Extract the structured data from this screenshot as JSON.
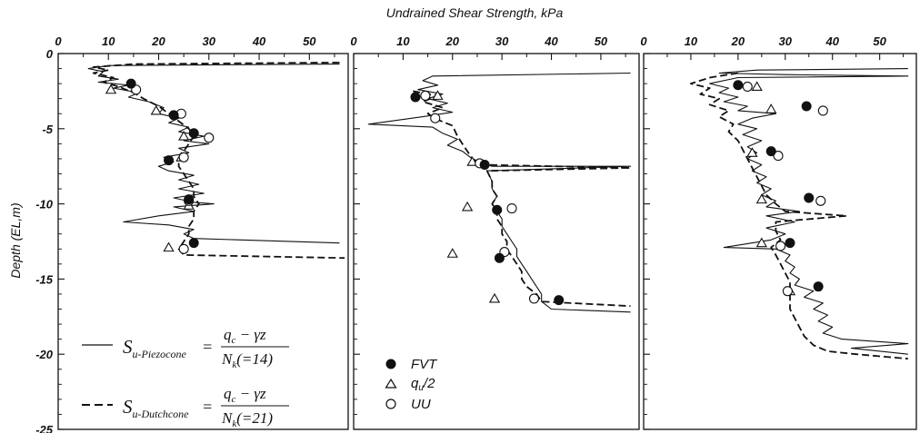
{
  "chart_data": {
    "type": "line",
    "title": "Undrained Shear Strength, kPa",
    "ylabel": "Depth (EL,m)",
    "xlim": [
      0,
      57
    ],
    "ylim": [
      -25,
      0
    ],
    "x_ticks": [
      "0",
      "10",
      "20",
      "30",
      "40",
      "50"
    ],
    "y_ticks": [
      "0",
      "-5",
      "-10",
      "-15",
      "-20",
      "-25"
    ],
    "grid": false,
    "legend_lines": {
      "piezocone": {
        "main": "S",
        "sub": "u-Piezocone",
        "num": "q",
        "num_sub": "c",
        "num_rest": " − γz",
        "den": "N",
        "den_sub": "k",
        "den_rest": "(=14)"
      },
      "dutchcone": {
        "main": "S",
        "sub": "u-Dutchcone",
        "num": "q",
        "num_sub": "c",
        "num_rest": " − γz",
        "den": "N",
        "den_sub": "k",
        "den_rest": "(=21)"
      }
    },
    "legend_markers": [
      {
        "label": "FVT",
        "marker": "filled-circle"
      },
      {
        "label": "qu/2",
        "marker": "open-triangle"
      },
      {
        "label": "UU",
        "marker": "open-circle"
      }
    ],
    "panels": [
      {
        "piezocone": [
          [
            56,
            -0.7
          ],
          [
            10,
            -0.8
          ],
          [
            6,
            -1.0
          ],
          [
            9,
            -1.2
          ],
          [
            8,
            -1.5
          ],
          [
            12,
            -1.7
          ],
          [
            8,
            -1.9
          ],
          [
            14,
            -2.1
          ],
          [
            11,
            -2.3
          ],
          [
            16,
            -2.6
          ],
          [
            14,
            -2.9
          ],
          [
            18,
            -3.2
          ],
          [
            21,
            -3.6
          ],
          [
            20,
            -4.0
          ],
          [
            24,
            -4.3
          ],
          [
            22,
            -4.6
          ],
          [
            26,
            -4.9
          ],
          [
            24,
            -5.2
          ],
          [
            29,
            -5.5
          ],
          [
            25,
            -5.8
          ],
          [
            30,
            -6.0
          ],
          [
            24,
            -6.3
          ],
          [
            26,
            -6.6
          ],
          [
            21,
            -6.9
          ],
          [
            23,
            -7.2
          ],
          [
            20,
            -7.5
          ],
          [
            22,
            -7.8
          ],
          [
            27,
            -8.1
          ],
          [
            24,
            -8.4
          ],
          [
            28,
            -8.7
          ],
          [
            24,
            -9.0
          ],
          [
            29,
            -9.3
          ],
          [
            23,
            -9.6
          ],
          [
            27,
            -9.9
          ],
          [
            31,
            -10.0
          ],
          [
            23,
            -10.2
          ],
          [
            27,
            -10.5
          ],
          [
            20,
            -10.8
          ],
          [
            13,
            -11.2
          ],
          [
            22,
            -11.4
          ],
          [
            27,
            -11.7
          ],
          [
            25,
            -12.0
          ],
          [
            27,
            -12.3
          ],
          [
            56,
            -12.6
          ]
        ],
        "dutchcone": [
          [
            56,
            -0.6
          ],
          [
            15,
            -0.7
          ],
          [
            7,
            -0.9
          ],
          [
            10,
            -1.1
          ],
          [
            7,
            -1.3
          ],
          [
            11,
            -1.6
          ],
          [
            9,
            -1.9
          ],
          [
            12,
            -2.2
          ],
          [
            15,
            -2.6
          ],
          [
            17,
            -3.0
          ],
          [
            20,
            -3.5
          ],
          [
            22,
            -4.0
          ],
          [
            24,
            -4.5
          ],
          [
            26,
            -5.0
          ],
          [
            27,
            -5.5
          ],
          [
            26,
            -6.0
          ],
          [
            25,
            -6.5
          ],
          [
            24,
            -7.0
          ],
          [
            24,
            -7.5
          ],
          [
            25,
            -8.0
          ],
          [
            26,
            -8.5
          ],
          [
            27,
            -9.0
          ],
          [
            27,
            -9.5
          ],
          [
            28,
            -10.0
          ],
          [
            27,
            -10.5
          ],
          [
            27,
            -11.0
          ],
          [
            26,
            -11.5
          ],
          [
            26,
            -12.0
          ],
          [
            25,
            -12.5
          ],
          [
            24,
            -13.0
          ],
          [
            25,
            -13.4
          ],
          [
            57,
            -13.6
          ]
        ],
        "fvt": [
          [
            14.5,
            -2.0
          ],
          [
            23,
            -4.1
          ],
          [
            27,
            -5.3
          ],
          [
            22,
            -7.1
          ],
          [
            26,
            -9.7
          ],
          [
            27,
            -12.6
          ]
        ],
        "qu2": [
          [
            10.5,
            -2.4
          ],
          [
            19.5,
            -3.8
          ],
          [
            25,
            -5.5
          ],
          [
            24.5,
            -6.9
          ],
          [
            26,
            -10.1
          ],
          [
            22,
            -12.9
          ]
        ],
        "uu": [
          [
            15.5,
            -2.4
          ],
          [
            24.5,
            -4.0
          ],
          [
            30,
            -5.6
          ],
          [
            25,
            -6.9
          ],
          [
            26,
            -9.8
          ],
          [
            25,
            -13.0
          ]
        ]
      },
      {
        "piezocone": [
          [
            56,
            -1.3
          ],
          [
            16,
            -1.5
          ],
          [
            14,
            -1.8
          ],
          [
            17,
            -2.1
          ],
          [
            13,
            -2.4
          ],
          [
            18,
            -2.7
          ],
          [
            15,
            -3.0
          ],
          [
            19,
            -3.3
          ],
          [
            16,
            -3.6
          ],
          [
            20,
            -3.9
          ],
          [
            14,
            -4.2
          ],
          [
            3,
            -4.7
          ],
          [
            16,
            -4.9
          ],
          [
            18,
            -5.3
          ],
          [
            21,
            -5.7
          ],
          [
            19,
            -6.1
          ],
          [
            22,
            -6.5
          ],
          [
            24,
            -7.0
          ],
          [
            28,
            -7.5
          ],
          [
            56,
            -7.5
          ],
          [
            27,
            -7.8
          ],
          [
            28,
            -8.5
          ],
          [
            28,
            -9.0
          ],
          [
            29,
            -9.5
          ],
          [
            28,
            -10.0
          ],
          [
            29,
            -10.5
          ],
          [
            30,
            -11.0
          ],
          [
            30,
            -11.5
          ],
          [
            31,
            -12.0
          ],
          [
            32,
            -12.5
          ],
          [
            33,
            -13.0
          ],
          [
            33,
            -13.5
          ],
          [
            34,
            -14.0
          ],
          [
            35,
            -14.5
          ],
          [
            36,
            -15.0
          ],
          [
            37,
            -15.5
          ],
          [
            38,
            -16.0
          ],
          [
            38,
            -16.5
          ],
          [
            40,
            -17.0
          ],
          [
            56,
            -17.2
          ]
        ],
        "dutchcone": [
          [
            12,
            -2.5
          ],
          [
            17,
            -2.8
          ],
          [
            14,
            -3.2
          ],
          [
            18,
            -3.6
          ],
          [
            15,
            -4.0
          ],
          [
            17,
            -4.4
          ],
          [
            20,
            -4.8
          ],
          [
            21,
            -5.5
          ],
          [
            22,
            -6.0
          ],
          [
            23,
            -6.5
          ],
          [
            24,
            -7.0
          ],
          [
            26,
            -7.4
          ],
          [
            56,
            -7.6
          ],
          [
            27,
            -7.8
          ],
          [
            28,
            -8.5
          ],
          [
            28,
            -9.0
          ],
          [
            29,
            -9.5
          ],
          [
            28,
            -10.0
          ],
          [
            29,
            -10.5
          ],
          [
            29,
            -11.0
          ],
          [
            30,
            -11.5
          ],
          [
            30,
            -12.0
          ],
          [
            31,
            -12.5
          ],
          [
            31,
            -13.0
          ],
          [
            32,
            -13.5
          ],
          [
            33,
            -14.0
          ],
          [
            34,
            -14.5
          ],
          [
            34,
            -15.0
          ],
          [
            35,
            -15.5
          ],
          [
            37,
            -16.0
          ],
          [
            38,
            -16.5
          ],
          [
            56,
            -16.8
          ]
        ],
        "fvt": [
          [
            12.5,
            -2.9
          ],
          [
            26.5,
            -7.4
          ],
          [
            29,
            -10.4
          ],
          [
            29.5,
            -13.6
          ],
          [
            41.5,
            -16.4
          ]
        ],
        "qu2": [
          [
            17,
            -2.8
          ],
          [
            24,
            -7.2
          ],
          [
            23,
            -10.2
          ],
          [
            20,
            -13.3
          ],
          [
            28.5,
            -16.3
          ]
        ],
        "uu": [
          [
            14.5,
            -2.8
          ],
          [
            16.5,
            -4.3
          ],
          [
            25.5,
            -7.3
          ],
          [
            32,
            -10.3
          ],
          [
            30.5,
            -13.2
          ],
          [
            36.5,
            -16.3
          ]
        ]
      },
      {
        "piezocone": [
          [
            56,
            -1.0
          ],
          [
            24,
            -1.1
          ],
          [
            16,
            -1.3
          ],
          [
            30,
            -1.4
          ],
          [
            56,
            -1.5
          ],
          [
            20,
            -1.6
          ],
          [
            14,
            -2.0
          ],
          [
            18,
            -2.3
          ],
          [
            16,
            -2.6
          ],
          [
            20,
            -2.9
          ],
          [
            17,
            -3.2
          ],
          [
            22,
            -3.5
          ],
          [
            20,
            -3.8
          ],
          [
            28,
            -4.0
          ],
          [
            23,
            -4.3
          ],
          [
            20,
            -4.7
          ],
          [
            24,
            -5.0
          ],
          [
            21,
            -5.4
          ],
          [
            25,
            -5.8
          ],
          [
            22,
            -6.2
          ],
          [
            24,
            -6.6
          ],
          [
            22,
            -7.0
          ],
          [
            25,
            -7.4
          ],
          [
            23,
            -7.8
          ],
          [
            26,
            -8.2
          ],
          [
            24,
            -8.6
          ],
          [
            27,
            -9.0
          ],
          [
            25,
            -9.4
          ],
          [
            28,
            -9.8
          ],
          [
            26,
            -10.2
          ],
          [
            33,
            -10.5
          ],
          [
            26,
            -10.8
          ],
          [
            32,
            -11.2
          ],
          [
            26,
            -11.6
          ],
          [
            30,
            -12.0
          ],
          [
            27,
            -12.4
          ],
          [
            17,
            -12.9
          ],
          [
            28,
            -13.0
          ],
          [
            31,
            -13.4
          ],
          [
            30,
            -13.8
          ],
          [
            32,
            -14.2
          ],
          [
            31,
            -14.6
          ],
          [
            33,
            -15.0
          ],
          [
            32,
            -15.4
          ],
          [
            36,
            -15.8
          ],
          [
            34,
            -16.2
          ],
          [
            38,
            -16.6
          ],
          [
            36,
            -17.0
          ],
          [
            39,
            -17.4
          ],
          [
            37,
            -17.8
          ],
          [
            40,
            -18.2
          ],
          [
            38,
            -18.6
          ],
          [
            42,
            -19.0
          ],
          [
            56,
            -19.3
          ],
          [
            44,
            -19.6
          ],
          [
            56,
            -20.0
          ]
        ],
        "dutchcone": [
          [
            20,
            -1.3
          ],
          [
            14,
            -1.6
          ],
          [
            10,
            -2.0
          ],
          [
            14,
            -2.3
          ],
          [
            12,
            -2.7
          ],
          [
            16,
            -3.0
          ],
          [
            14,
            -3.4
          ],
          [
            18,
            -3.8
          ],
          [
            16,
            -4.2
          ],
          [
            19,
            -4.7
          ],
          [
            18,
            -5.2
          ],
          [
            20,
            -5.8
          ],
          [
            21,
            -6.4
          ],
          [
            22,
            -7.0
          ],
          [
            23,
            -7.6
          ],
          [
            24,
            -8.2
          ],
          [
            25,
            -8.8
          ],
          [
            26,
            -9.4
          ],
          [
            28,
            -10.0
          ],
          [
            30,
            -10.5
          ],
          [
            43,
            -10.8
          ],
          [
            28,
            -11.2
          ],
          [
            28,
            -11.8
          ],
          [
            29,
            -12.4
          ],
          [
            27,
            -12.9
          ],
          [
            28,
            -13.4
          ],
          [
            29,
            -14.0
          ],
          [
            30,
            -14.6
          ],
          [
            31,
            -15.2
          ],
          [
            31,
            -15.8
          ],
          [
            31,
            -16.4
          ],
          [
            31,
            -17.0
          ],
          [
            32,
            -17.6
          ],
          [
            33,
            -18.2
          ],
          [
            34,
            -18.8
          ],
          [
            36,
            -19.4
          ],
          [
            39,
            -19.8
          ],
          [
            45,
            -20.0
          ],
          [
            56,
            -20.3
          ]
        ],
        "fvt": [
          [
            20,
            -2.1
          ],
          [
            34.5,
            -3.5
          ],
          [
            27,
            -6.5
          ],
          [
            35,
            -9.6
          ],
          [
            31,
            -12.6
          ],
          [
            37,
            -15.5
          ]
        ],
        "qu2": [
          [
            24,
            -2.2
          ],
          [
            27,
            -3.7
          ],
          [
            23,
            -6.6
          ],
          [
            25,
            -9.7
          ],
          [
            25,
            -12.6
          ],
          [
            31,
            -15.8
          ]
        ],
        "uu": [
          [
            22,
            -2.2
          ],
          [
            38,
            -3.8
          ],
          [
            28.5,
            -6.8
          ],
          [
            37.5,
            -9.8
          ],
          [
            29,
            -12.8
          ],
          [
            30.5,
            -15.8
          ]
        ]
      }
    ]
  }
}
